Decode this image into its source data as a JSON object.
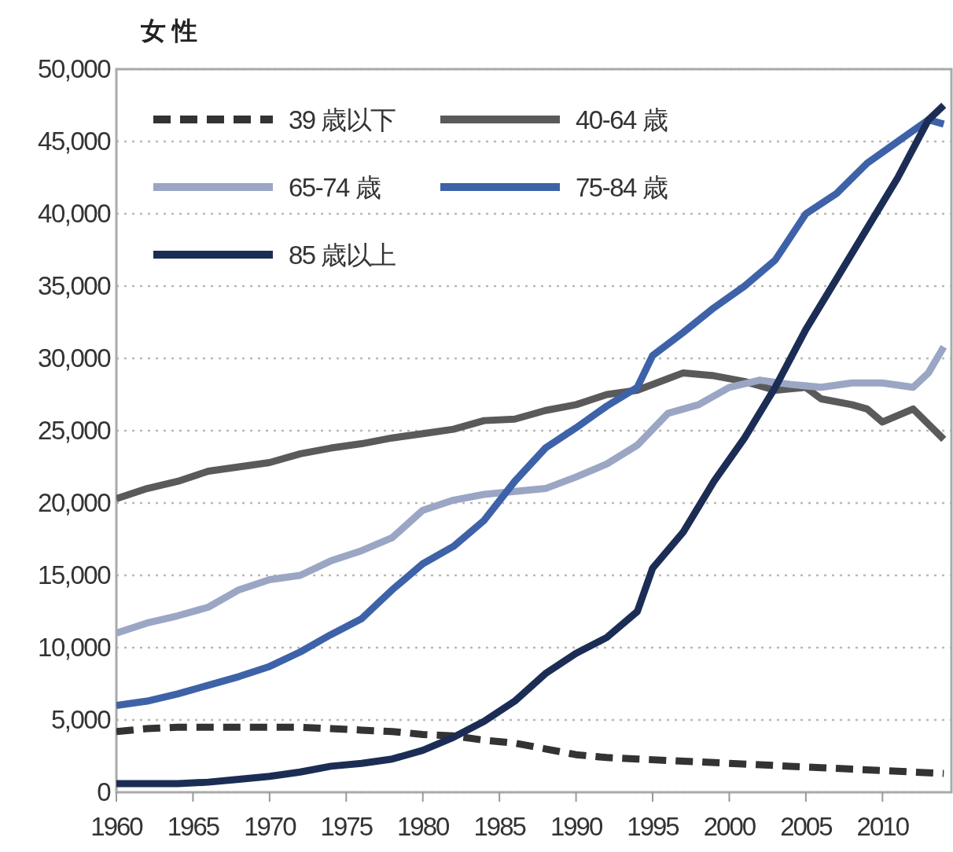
{
  "chart_data": {
    "type": "line",
    "title": "女 性",
    "xlim": [
      1960,
      2014.5
    ],
    "ylim": [
      0,
      50000
    ],
    "xticks": [
      1960,
      1965,
      1970,
      1975,
      1980,
      1985,
      1990,
      1995,
      2000,
      2005,
      2010
    ],
    "yticks": [
      0,
      {
        "value": 5000,
        "label": "5,000"
      },
      {
        "value": 10000,
        "label": "10,000"
      },
      {
        "value": 15000,
        "label": "15,000"
      },
      {
        "value": 20000,
        "label": "20,000"
      },
      {
        "value": 25000,
        "label": "25,000"
      },
      {
        "value": 30000,
        "label": "30,000"
      },
      {
        "value": 35000,
        "label": "35,000"
      },
      {
        "value": 40000,
        "label": "40,000"
      },
      {
        "value": 45000,
        "label": "45,000"
      },
      {
        "value": 50000,
        "label": "50,000"
      }
    ],
    "grid": "y",
    "legend": "top left",
    "series": [
      {
        "name": "39 歳以下",
        "color": "#333333",
        "line_style": "dashed",
        "x": [
          1960,
          1962,
          1964,
          1966,
          1968,
          1970,
          1972,
          1974,
          1976,
          1978,
          1980,
          1982,
          1984,
          1986,
          1988,
          1990,
          1992,
          1994,
          1996,
          1998,
          2000,
          2002,
          2004,
          2006,
          2008,
          2010,
          2012,
          2014
        ],
        "values": [
          4200,
          4400,
          4500,
          4500,
          4500,
          4500,
          4500,
          4400,
          4300,
          4200,
          4000,
          3900,
          3600,
          3400,
          3000,
          2600,
          2400,
          2300,
          2200,
          2100,
          2000,
          1900,
          1800,
          1700,
          1600,
          1500,
          1400,
          1300
        ]
      },
      {
        "name": "40-64 歳",
        "color": "#5a5a5a",
        "line_style": "solid",
        "x": [
          1960,
          1962,
          1964,
          1966,
          1968,
          1970,
          1972,
          1974,
          1976,
          1978,
          1980,
          1982,
          1984,
          1986,
          1988,
          1990,
          1992,
          1994,
          1996,
          1997,
          1999,
          2001,
          2003,
          2005,
          2006,
          2008,
          2009,
          2010,
          2012,
          2014
        ],
        "values": [
          20300,
          21000,
          21500,
          22200,
          22500,
          22800,
          23400,
          23800,
          24100,
          24500,
          24800,
          25100,
          25700,
          25800,
          26400,
          26800,
          27500,
          27800,
          28600,
          29000,
          28800,
          28400,
          27800,
          28000,
          27200,
          26800,
          26500,
          25600,
          26500,
          24400
        ]
      },
      {
        "name": "65-74 歳",
        "color": "#9aa6c4",
        "line_style": "solid",
        "x": [
          1960,
          1962,
          1964,
          1966,
          1968,
          1970,
          1972,
          1974,
          1976,
          1978,
          1980,
          1982,
          1984,
          1986,
          1988,
          1990,
          1992,
          1994,
          1996,
          1998,
          2000,
          2002,
          2004,
          2006,
          2008,
          2010,
          2012,
          2013,
          2014
        ],
        "values": [
          11000,
          11700,
          12200,
          12800,
          14000,
          14700,
          15000,
          16000,
          16700,
          17600,
          19500,
          20200,
          20600,
          20800,
          21000,
          21800,
          22700,
          24000,
          26200,
          26800,
          28000,
          28500,
          28200,
          28000,
          28300,
          28300,
          28000,
          29000,
          30800
        ]
      },
      {
        "name": "75-84 歳",
        "color": "#3d62a8",
        "line_style": "solid",
        "x": [
          1960,
          1962,
          1964,
          1966,
          1968,
          1970,
          1972,
          1974,
          1976,
          1978,
          1980,
          1982,
          1984,
          1986,
          1988,
          1990,
          1992,
          1994,
          1995,
          1997,
          1999,
          2001,
          2003,
          2005,
          2007,
          2009,
          2011,
          2013,
          2014
        ],
        "values": [
          6000,
          6300,
          6800,
          7400,
          8000,
          8700,
          9700,
          10900,
          12000,
          14000,
          15800,
          17000,
          18800,
          21500,
          23800,
          25200,
          26700,
          28000,
          30200,
          31800,
          33500,
          35000,
          36800,
          40000,
          41400,
          43500,
          45000,
          46500,
          46200
        ]
      },
      {
        "name": "85 歳以上",
        "color": "#1c2d55",
        "line_style": "solid",
        "x": [
          1960,
          1964,
          1966,
          1968,
          1970,
          1972,
          1974,
          1976,
          1978,
          1980,
          1982,
          1984,
          1986,
          1988,
          1990,
          1992,
          1994,
          1995,
          1997,
          1999,
          2001,
          2003,
          2005,
          2007,
          2009,
          2011,
          2013,
          2014
        ],
        "values": [
          600,
          600,
          700,
          900,
          1100,
          1400,
          1800,
          2000,
          2300,
          2900,
          3800,
          4900,
          6300,
          8200,
          9600,
          10700,
          12500,
          15500,
          18000,
          21500,
          24500,
          28000,
          32000,
          35500,
          39000,
          42500,
          46500,
          47500
        ]
      }
    ]
  }
}
